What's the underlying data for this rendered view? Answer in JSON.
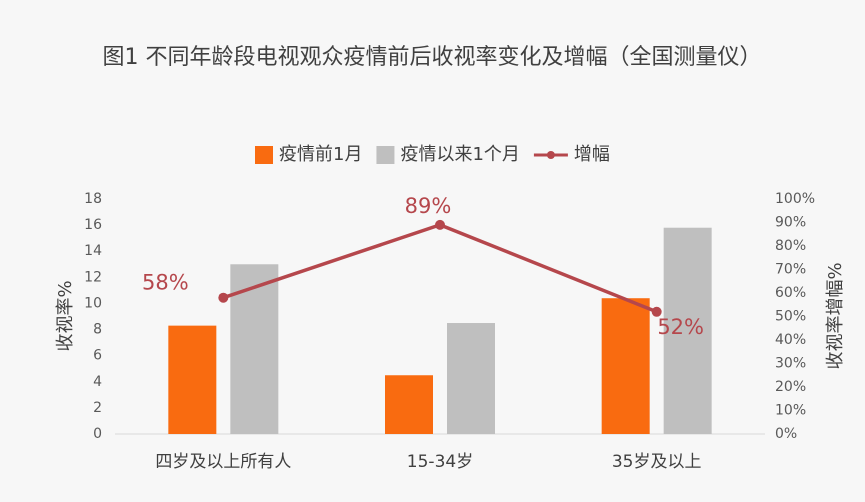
{
  "chart_data": {
    "type": "bar-line",
    "title": "图1  不同年龄段电视观众疫情前后收视率变化及增幅（全国测量仪）",
    "categories": [
      "四岁及以上所有人",
      "15-34岁",
      "35岁及以上"
    ],
    "series": [
      {
        "name": "疫情前1月",
        "type": "bar",
        "color": "#f96b10",
        "values": [
          8.3,
          4.5,
          10.4
        ]
      },
      {
        "name": "疫情以来1个月",
        "type": "bar",
        "color": "#bfbfbf",
        "values": [
          13.0,
          8.5,
          15.8
        ]
      },
      {
        "name": "增幅",
        "type": "line",
        "axis": "y2",
        "color": "#b5474c",
        "values": [
          58,
          89,
          52
        ],
        "value_labels": [
          "58%",
          "89%",
          "52%"
        ]
      }
    ],
    "ylabel": "收视率%",
    "y2label": "收视率增幅%",
    "ylim": [
      0,
      18
    ],
    "yticks": [
      0,
      2,
      4,
      6,
      8,
      10,
      12,
      14,
      16,
      18
    ],
    "y2lim": [
      0,
      100
    ],
    "y2ticks": [
      {
        "value": 0,
        "label": "0%"
      },
      {
        "value": 10,
        "label": "10%"
      },
      {
        "value": 20,
        "label": "20%"
      },
      {
        "value": 30,
        "label": "30%"
      },
      {
        "value": 40,
        "label": "40%"
      },
      {
        "value": 50,
        "label": "50%"
      },
      {
        "value": 60,
        "label": "60%"
      },
      {
        "value": 70,
        "label": "70%"
      },
      {
        "value": 80,
        "label": "80%"
      },
      {
        "value": 90,
        "label": "90%"
      },
      {
        "value": 100,
        "label": "100%"
      }
    ],
    "grid": false,
    "legend": "top"
  }
}
